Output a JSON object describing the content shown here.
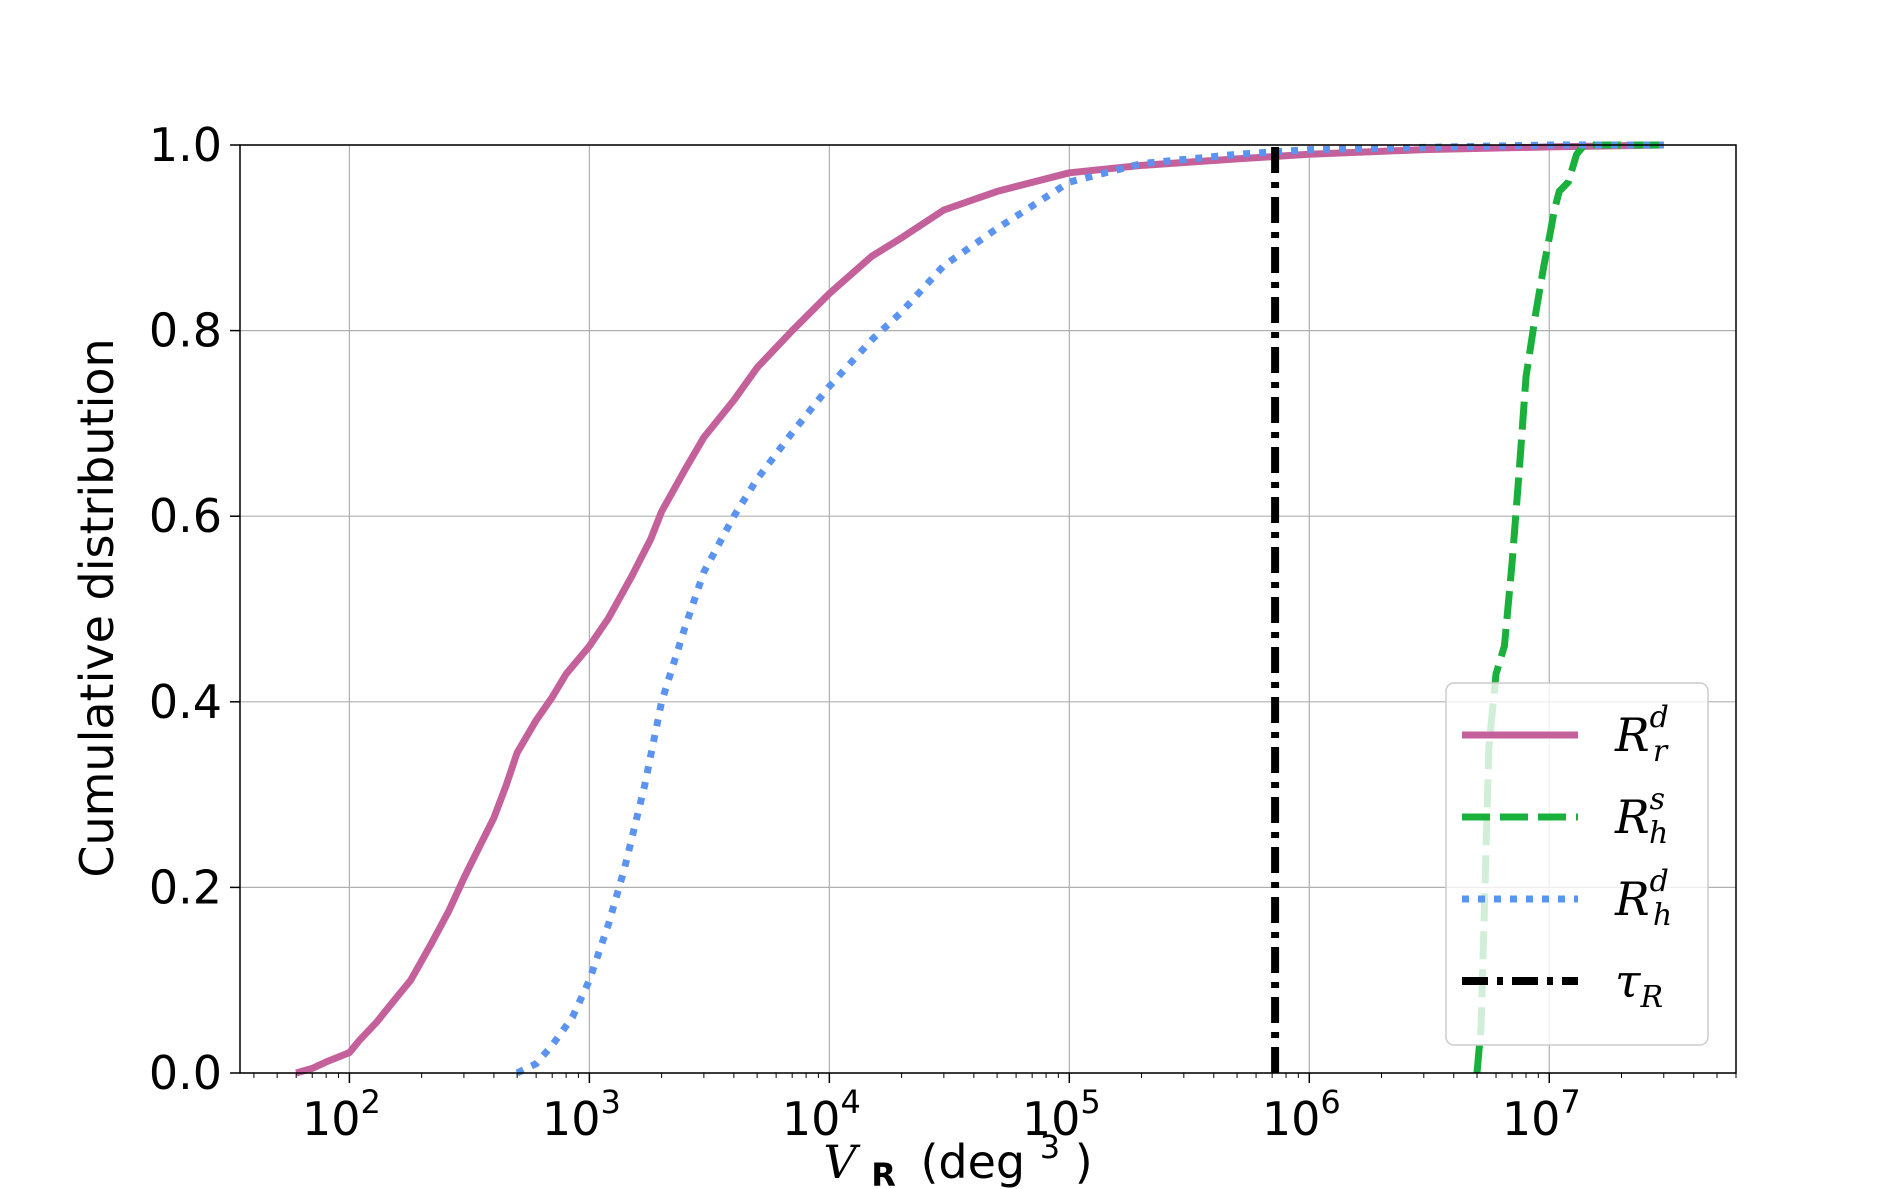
{
  "chart_data": {
    "type": "line",
    "xlabel": {
      "var": "V",
      "sub": "R",
      "unit_prefix": "(deg",
      "unit_exp": "3",
      "unit_suffix": ")"
    },
    "ylabel": "Cumulative distribution",
    "xscale": "log",
    "xlim": [
      35,
      60000000
    ],
    "ylim": [
      0.0,
      1.0
    ],
    "grid": true,
    "legend_position": "lower-right",
    "x_ticks": [
      {
        "value": 100,
        "base": "10",
        "exp": "2"
      },
      {
        "value": 1000,
        "base": "10",
        "exp": "3"
      },
      {
        "value": 10000,
        "base": "10",
        "exp": "4"
      },
      {
        "value": 100000,
        "base": "10",
        "exp": "5"
      },
      {
        "value": 1000000,
        "base": "10",
        "exp": "6"
      },
      {
        "value": 10000000,
        "base": "10",
        "exp": "7"
      }
    ],
    "y_ticks": [
      "0.0",
      "0.2",
      "0.4",
      "0.6",
      "0.8",
      "1.0"
    ],
    "series": [
      {
        "legend_base": "R",
        "legend_sup": "d",
        "legend_sub": "r",
        "color": "#c4609a",
        "style": "solid",
        "points": [
          [
            60,
            0.0
          ],
          [
            70,
            0.005
          ],
          [
            80,
            0.012
          ],
          [
            100,
            0.022
          ],
          [
            110,
            0.035
          ],
          [
            130,
            0.055
          ],
          [
            150,
            0.075
          ],
          [
            180,
            0.1
          ],
          [
            220,
            0.14
          ],
          [
            260,
            0.175
          ],
          [
            300,
            0.21
          ],
          [
            350,
            0.245
          ],
          [
            400,
            0.275
          ],
          [
            450,
            0.31
          ],
          [
            500,
            0.345
          ],
          [
            600,
            0.38
          ],
          [
            700,
            0.405
          ],
          [
            800,
            0.43
          ],
          [
            1000,
            0.46
          ],
          [
            1200,
            0.49
          ],
          [
            1500,
            0.535
          ],
          [
            1800,
            0.575
          ],
          [
            2000,
            0.605
          ],
          [
            2500,
            0.65
          ],
          [
            3000,
            0.685
          ],
          [
            4000,
            0.725
          ],
          [
            5000,
            0.76
          ],
          [
            7000,
            0.8
          ],
          [
            10000,
            0.84
          ],
          [
            15000,
            0.88
          ],
          [
            20000,
            0.9
          ],
          [
            30000,
            0.93
          ],
          [
            50000,
            0.95
          ],
          [
            100000,
            0.97
          ],
          [
            200000,
            0.978
          ],
          [
            500000,
            0.985
          ],
          [
            1000000,
            0.99
          ],
          [
            3000000,
            0.995
          ],
          [
            10000000,
            0.998
          ],
          [
            30000000,
            1.0
          ]
        ]
      },
      {
        "legend_base": "R",
        "legend_sup": "s",
        "legend_sub": "h",
        "color": "#1ab03c",
        "style": "dashed",
        "points": [
          [
            5000000,
            0.0
          ],
          [
            5200000,
            0.05
          ],
          [
            5400000,
            0.2
          ],
          [
            5600000,
            0.35
          ],
          [
            6000000,
            0.43
          ],
          [
            6500000,
            0.46
          ],
          [
            7000000,
            0.55
          ],
          [
            7500000,
            0.65
          ],
          [
            8000000,
            0.75
          ],
          [
            8800000,
            0.82
          ],
          [
            9500000,
            0.87
          ],
          [
            10000000,
            0.9
          ],
          [
            10500000,
            0.93
          ],
          [
            11000000,
            0.95
          ],
          [
            12000000,
            0.96
          ],
          [
            13000000,
            0.99
          ],
          [
            14000000,
            1.0
          ],
          [
            30000000,
            1.0
          ]
        ]
      },
      {
        "legend_base": "R",
        "legend_sup": "d",
        "legend_sub": "h",
        "color": "#5b94f0",
        "style": "dotted",
        "points": [
          [
            500,
            0.0
          ],
          [
            600,
            0.01
          ],
          [
            700,
            0.03
          ],
          [
            850,
            0.06
          ],
          [
            1000,
            0.1
          ],
          [
            1200,
            0.16
          ],
          [
            1400,
            0.22
          ],
          [
            1700,
            0.31
          ],
          [
            2000,
            0.4
          ],
          [
            2500,
            0.48
          ],
          [
            3000,
            0.54
          ],
          [
            4000,
            0.6
          ],
          [
            5000,
            0.64
          ],
          [
            7000,
            0.69
          ],
          [
            10000,
            0.74
          ],
          [
            15000,
            0.79
          ],
          [
            20000,
            0.82
          ],
          [
            30000,
            0.87
          ],
          [
            50000,
            0.91
          ],
          [
            100000,
            0.96
          ],
          [
            200000,
            0.98
          ],
          [
            500000,
            0.99
          ],
          [
            1000000,
            0.995
          ],
          [
            10000000,
            1.0
          ],
          [
            30000000,
            1.0
          ]
        ]
      },
      {
        "legend_base": "τ",
        "legend_sup": "",
        "legend_sub": "R",
        "color": "#000000",
        "style": "dashdot",
        "points": [
          [
            720000,
            0.0
          ],
          [
            720000,
            1.0
          ]
        ]
      }
    ]
  }
}
